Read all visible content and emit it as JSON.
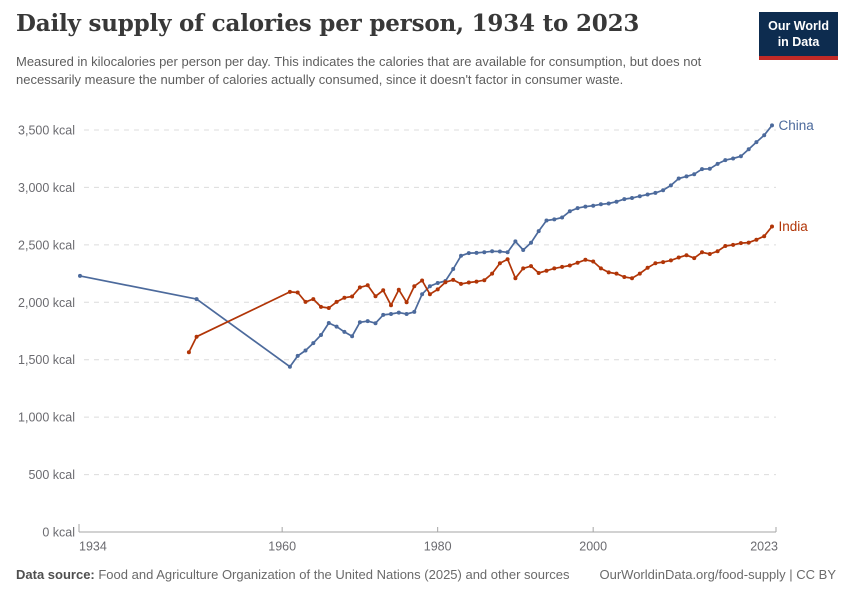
{
  "header": {
    "title": "Daily supply of calories per person, 1934 to 2023",
    "subtitle": "Measured in kilocalories per person per day. This indicates the calories that are available for consumption, but does not necessarily measure the number of calories actually consumed, since it doesn't factor in consumer waste.",
    "logo": {
      "line1": "Our World",
      "line2": "in Data",
      "bg_color": "#0D2C4F",
      "accent_color": "#C12A26"
    }
  },
  "chart_data": {
    "type": "line",
    "title": "Daily supply of calories per person, 1934 to 2023",
    "xlabel": "",
    "ylabel": "kcal",
    "xlim": [
      1934,
      2023
    ],
    "ylim": [
      0,
      3500
    ],
    "grid": "horizontal-dashed",
    "legend_position": "line-end-labels",
    "colors": {
      "grid": "#dcdcdc",
      "axis": "#a5a5a5",
      "tick_text": "#6b6b70"
    },
    "x_ticks": [
      {
        "value": 1934,
        "label": "1934"
      },
      {
        "value": 1960,
        "label": "1960"
      },
      {
        "value": 1980,
        "label": "1980"
      },
      {
        "value": 2000,
        "label": "2000"
      },
      {
        "value": 2023,
        "label": "2023"
      }
    ],
    "y_ticks": [
      {
        "value": 0,
        "label": "0 kcal"
      },
      {
        "value": 500,
        "label": "500 kcal"
      },
      {
        "value": 1000,
        "label": "1,000 kcal"
      },
      {
        "value": 1500,
        "label": "1,500 kcal"
      },
      {
        "value": 2000,
        "label": "2,000 kcal"
      },
      {
        "value": 2500,
        "label": "2,500 kcal"
      },
      {
        "value": 3000,
        "label": "3,000 kcal"
      },
      {
        "value": 3500,
        "label": "3,500 kcal"
      }
    ],
    "series": [
      {
        "name": "China",
        "color": "#4C6A9C",
        "points": [
          [
            1934,
            2230
          ],
          [
            1949,
            2028
          ],
          [
            1961,
            1439
          ],
          [
            1962,
            1533
          ],
          [
            1963,
            1580
          ],
          [
            1964,
            1645
          ],
          [
            1965,
            1715
          ],
          [
            1966,
            1820
          ],
          [
            1967,
            1788
          ],
          [
            1968,
            1742
          ],
          [
            1969,
            1705
          ],
          [
            1970,
            1826
          ],
          [
            1971,
            1836
          ],
          [
            1972,
            1818
          ],
          [
            1973,
            1890
          ],
          [
            1974,
            1898
          ],
          [
            1975,
            1910
          ],
          [
            1976,
            1898
          ],
          [
            1977,
            1916
          ],
          [
            1978,
            2070
          ],
          [
            1979,
            2140
          ],
          [
            1980,
            2168
          ],
          [
            1981,
            2185
          ],
          [
            1982,
            2290
          ],
          [
            1983,
            2405
          ],
          [
            1984,
            2428
          ],
          [
            1985,
            2430
          ],
          [
            1986,
            2436
          ],
          [
            1987,
            2444
          ],
          [
            1988,
            2442
          ],
          [
            1989,
            2435
          ],
          [
            1990,
            2530
          ],
          [
            1991,
            2455
          ],
          [
            1992,
            2518
          ],
          [
            1993,
            2620
          ],
          [
            1994,
            2712
          ],
          [
            1995,
            2722
          ],
          [
            1996,
            2738
          ],
          [
            1997,
            2792
          ],
          [
            1998,
            2820
          ],
          [
            1999,
            2833
          ],
          [
            2000,
            2841
          ],
          [
            2001,
            2853
          ],
          [
            2002,
            2860
          ],
          [
            2003,
            2876
          ],
          [
            2004,
            2898
          ],
          [
            2005,
            2908
          ],
          [
            2006,
            2924
          ],
          [
            2007,
            2938
          ],
          [
            2008,
            2952
          ],
          [
            2009,
            2976
          ],
          [
            2010,
            3018
          ],
          [
            2011,
            3078
          ],
          [
            2012,
            3096
          ],
          [
            2013,
            3115
          ],
          [
            2014,
            3160
          ],
          [
            2015,
            3162
          ],
          [
            2016,
            3205
          ],
          [
            2017,
            3238
          ],
          [
            2018,
            3252
          ],
          [
            2019,
            3272
          ],
          [
            2020,
            3333
          ],
          [
            2021,
            3395
          ],
          [
            2022,
            3455
          ],
          [
            2023,
            3540
          ]
        ]
      },
      {
        "name": "India",
        "color": "#B13507",
        "points": [
          [
            1948,
            1565
          ],
          [
            1949,
            1700
          ],
          [
            1961,
            2090
          ],
          [
            1962,
            2085
          ],
          [
            1963,
            2003
          ],
          [
            1964,
            2028
          ],
          [
            1965,
            1960
          ],
          [
            1966,
            1950
          ],
          [
            1967,
            2003
          ],
          [
            1968,
            2040
          ],
          [
            1969,
            2050
          ],
          [
            1970,
            2130
          ],
          [
            1971,
            2148
          ],
          [
            1972,
            2052
          ],
          [
            1973,
            2104
          ],
          [
            1974,
            1975
          ],
          [
            1975,
            2110
          ],
          [
            1976,
            2000
          ],
          [
            1977,
            2140
          ],
          [
            1978,
            2190
          ],
          [
            1979,
            2070
          ],
          [
            1980,
            2112
          ],
          [
            1981,
            2175
          ],
          [
            1982,
            2195
          ],
          [
            1983,
            2160
          ],
          [
            1984,
            2172
          ],
          [
            1985,
            2180
          ],
          [
            1986,
            2192
          ],
          [
            1987,
            2250
          ],
          [
            1988,
            2340
          ],
          [
            1989,
            2375
          ],
          [
            1990,
            2210
          ],
          [
            1991,
            2295
          ],
          [
            1992,
            2315
          ],
          [
            1993,
            2255
          ],
          [
            1994,
            2275
          ],
          [
            1995,
            2295
          ],
          [
            1996,
            2308
          ],
          [
            1997,
            2320
          ],
          [
            1998,
            2345
          ],
          [
            1999,
            2370
          ],
          [
            2000,
            2355
          ],
          [
            2001,
            2295
          ],
          [
            2002,
            2260
          ],
          [
            2003,
            2250
          ],
          [
            2004,
            2220
          ],
          [
            2005,
            2210
          ],
          [
            2006,
            2250
          ],
          [
            2007,
            2300
          ],
          [
            2008,
            2340
          ],
          [
            2009,
            2350
          ],
          [
            2010,
            2365
          ],
          [
            2011,
            2390
          ],
          [
            2012,
            2410
          ],
          [
            2013,
            2385
          ],
          [
            2014,
            2435
          ],
          [
            2015,
            2420
          ],
          [
            2016,
            2445
          ],
          [
            2017,
            2490
          ],
          [
            2018,
            2500
          ],
          [
            2019,
            2515
          ],
          [
            2020,
            2520
          ],
          [
            2021,
            2545
          ],
          [
            2022,
            2575
          ],
          [
            2023,
            2660
          ]
        ]
      }
    ]
  },
  "footer": {
    "source_label": "Data source:",
    "source_text": " Food and Agriculture Organization of the United Nations (2025) and other sources",
    "credit": "OurWorldinData.org/food-supply | CC BY"
  }
}
